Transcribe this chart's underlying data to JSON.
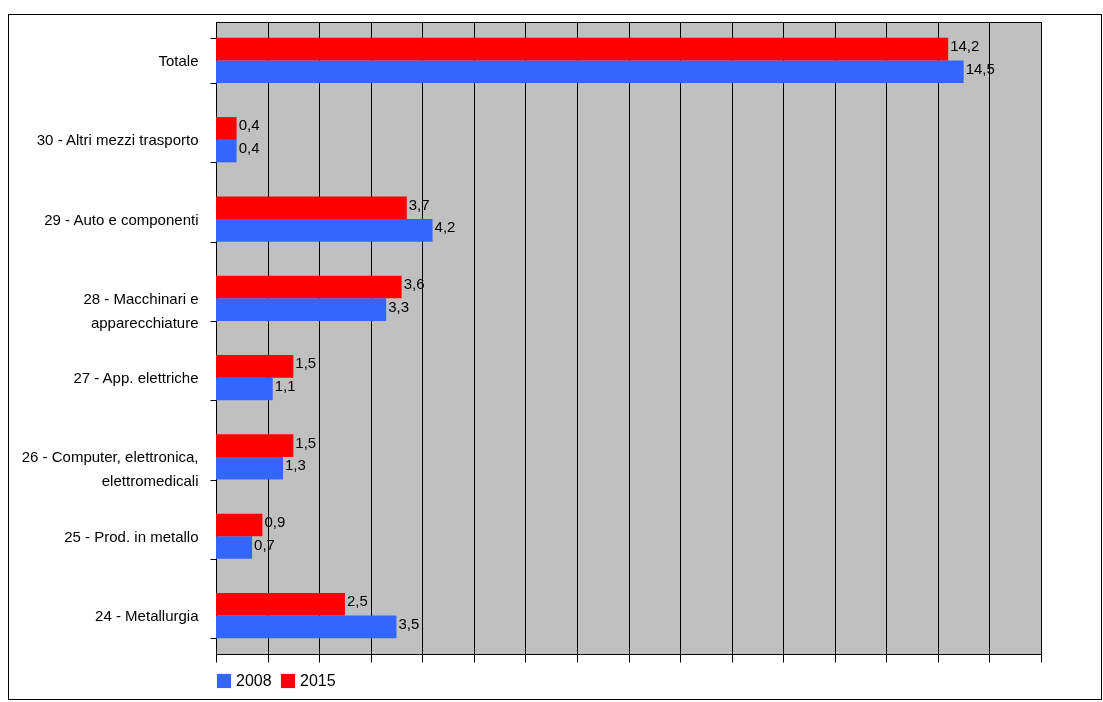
{
  "chart_data": {
    "type": "bar",
    "orientation": "horizontal",
    "categories": [
      "Totale",
      "30 - Altri mezzi trasporto",
      "29 - Auto e componenti",
      "28 - Macchinari e apparecchiature",
      "27 - App. elettriche",
      "26 - Computer, elettronica, elettromedicali",
      "25 - Prod. in metallo",
      "24 - Metallurgia"
    ],
    "series": [
      {
        "name": "2008",
        "color": "#3366ff",
        "values": [
          14.5,
          0.4,
          4.2,
          3.3,
          1.1,
          1.3,
          0.7,
          3.5
        ],
        "value_labels": [
          "14,5",
          "0,4",
          "4,2",
          "3,3",
          "1,1",
          "1,3",
          "0,7",
          "3,5"
        ]
      },
      {
        "name": "2015",
        "color": "#ff0000",
        "values": [
          14.2,
          0.4,
          3.7,
          3.6,
          1.5,
          1.5,
          0.9,
          2.5
        ],
        "value_labels": [
          "14,2",
          "0,4",
          "3,7",
          "3,6",
          "1,5",
          "1,5",
          "0,9",
          "2,5"
        ]
      }
    ],
    "grid": "x",
    "legend": "bottom",
    "tick_labels": "y"
  }
}
